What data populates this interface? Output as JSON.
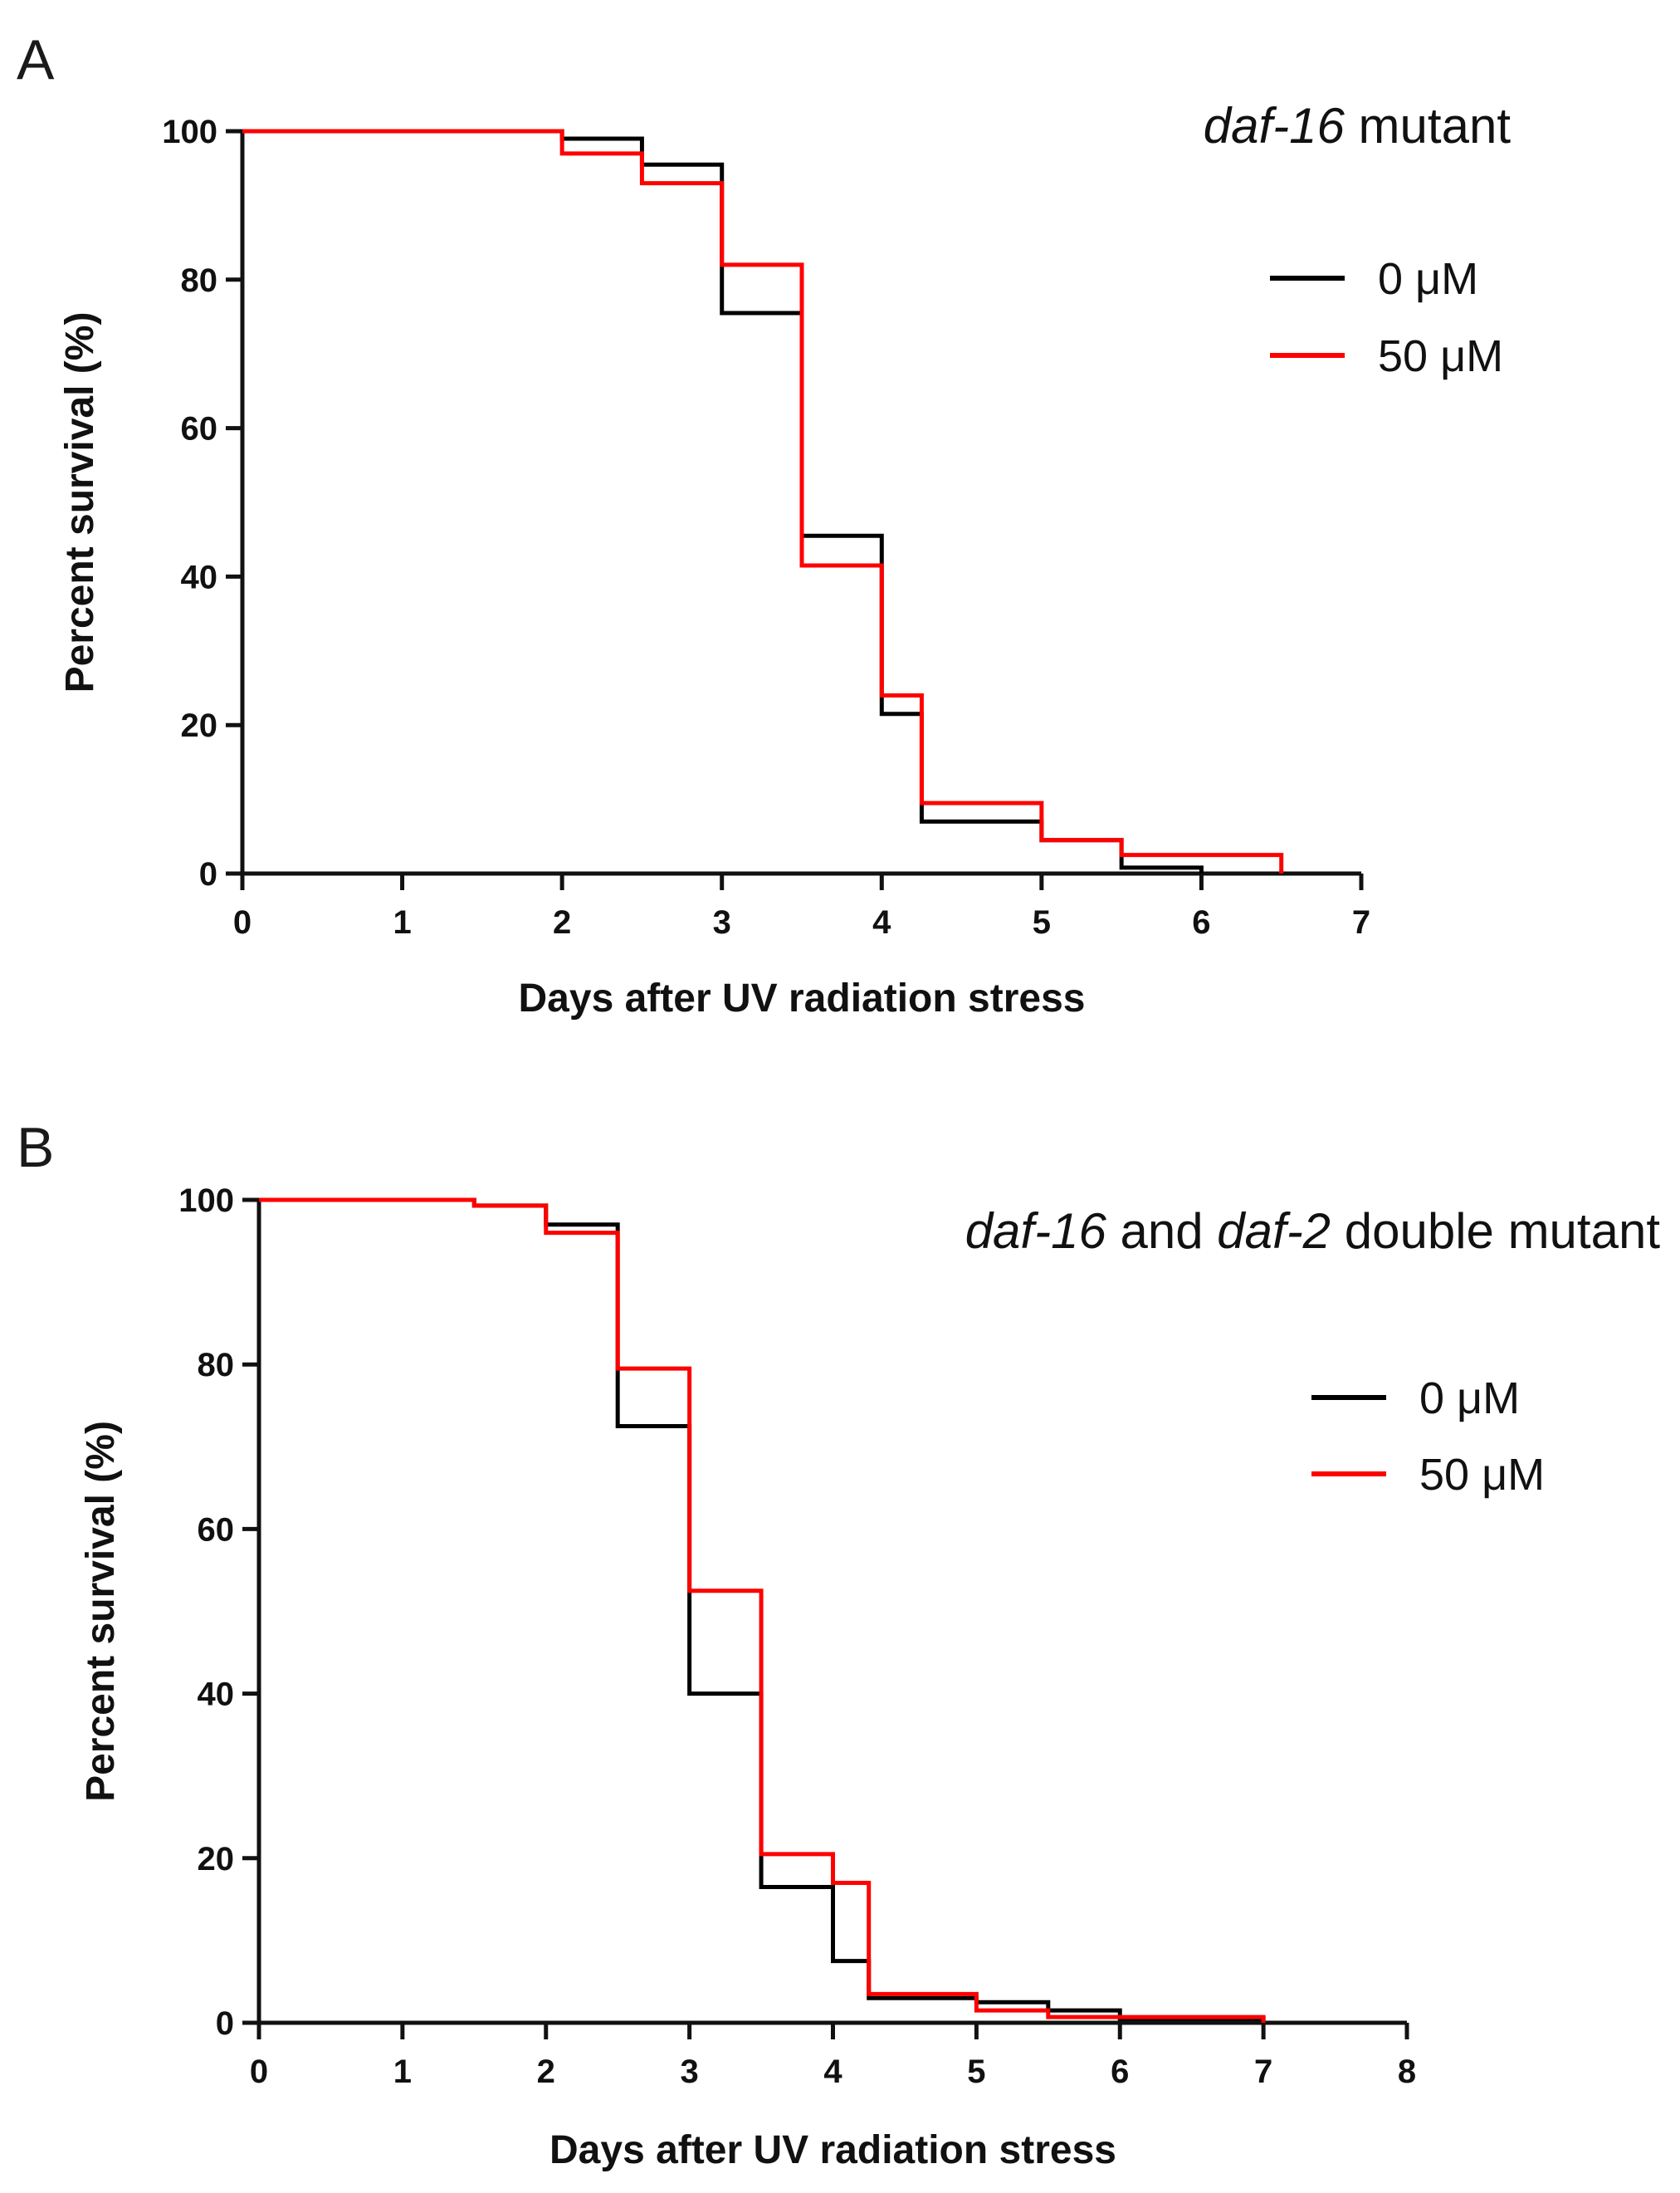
{
  "chart_data": [
    {
      "panel": "A",
      "type": "line",
      "step": true,
      "title_parts": [
        {
          "text": "daf-16",
          "italic": true
        },
        {
          "text": " mutant",
          "italic": false
        }
      ],
      "xlabel": "Days after UV radiation stress",
      "ylabel": "Percent survival (%)",
      "xlim": [
        0,
        7
      ],
      "ylim": [
        0,
        100
      ],
      "xticks": [
        "0",
        "1",
        "2",
        "3",
        "4",
        "5",
        "6",
        "7"
      ],
      "yticks": [
        "0",
        "20",
        "40",
        "60",
        "80",
        "100"
      ],
      "legend_position": "top-right",
      "series": [
        {
          "name": "0 μM",
          "color": "#000000",
          "x": [
            0,
            2,
            2.5,
            3,
            3.5,
            4,
            4.25,
            5,
            5.5,
            6
          ],
          "y": [
            100,
            99,
            95.5,
            75.5,
            45.5,
            21.5,
            7,
            4.5,
            0.8,
            0
          ]
        },
        {
          "name": "50 μM",
          "color": "#ff0000",
          "x": [
            0,
            2,
            2.5,
            3,
            3.5,
            4,
            4.25,
            5,
            5.5,
            6.5
          ],
          "y": [
            100,
            97,
            93,
            82,
            41.5,
            24,
            9.5,
            4.5,
            2.5,
            0
          ]
        }
      ]
    },
    {
      "panel": "B",
      "type": "line",
      "step": true,
      "title_parts": [
        {
          "text": "daf-16",
          "italic": true
        },
        {
          "text": " and ",
          "italic": false
        },
        {
          "text": "daf-2",
          "italic": true
        },
        {
          "text": " double mutant",
          "italic": false
        }
      ],
      "xlabel": "Days after UV radiation stress",
      "ylabel": "Percent survival (%)",
      "xlim": [
        0,
        8
      ],
      "ylim": [
        0,
        100
      ],
      "xticks": [
        "0",
        "1",
        "2",
        "3",
        "4",
        "5",
        "6",
        "7",
        "8"
      ],
      "yticks": [
        "0",
        "20",
        "40",
        "60",
        "80",
        "100"
      ],
      "legend_position": "top-right",
      "series": [
        {
          "name": "0 μM",
          "color": "#000000",
          "x": [
            0,
            1.5,
            2,
            2.5,
            3,
            3.5,
            4,
            4.25,
            5,
            5.5,
            6,
            7
          ],
          "y": [
            100,
            99.3,
            97,
            72.5,
            40,
            16.5,
            7.5,
            3,
            2.5,
            1.5,
            0.5,
            0
          ]
        },
        {
          "name": "50 μM",
          "color": "#ff0000",
          "x": [
            0,
            1.5,
            2,
            2.5,
            3,
            3.5,
            4,
            4.25,
            5,
            5.5,
            7
          ],
          "y": [
            100,
            99.3,
            96,
            79.5,
            52.5,
            20.5,
            17,
            3.5,
            1.5,
            0.7,
            0
          ]
        }
      ]
    }
  ]
}
